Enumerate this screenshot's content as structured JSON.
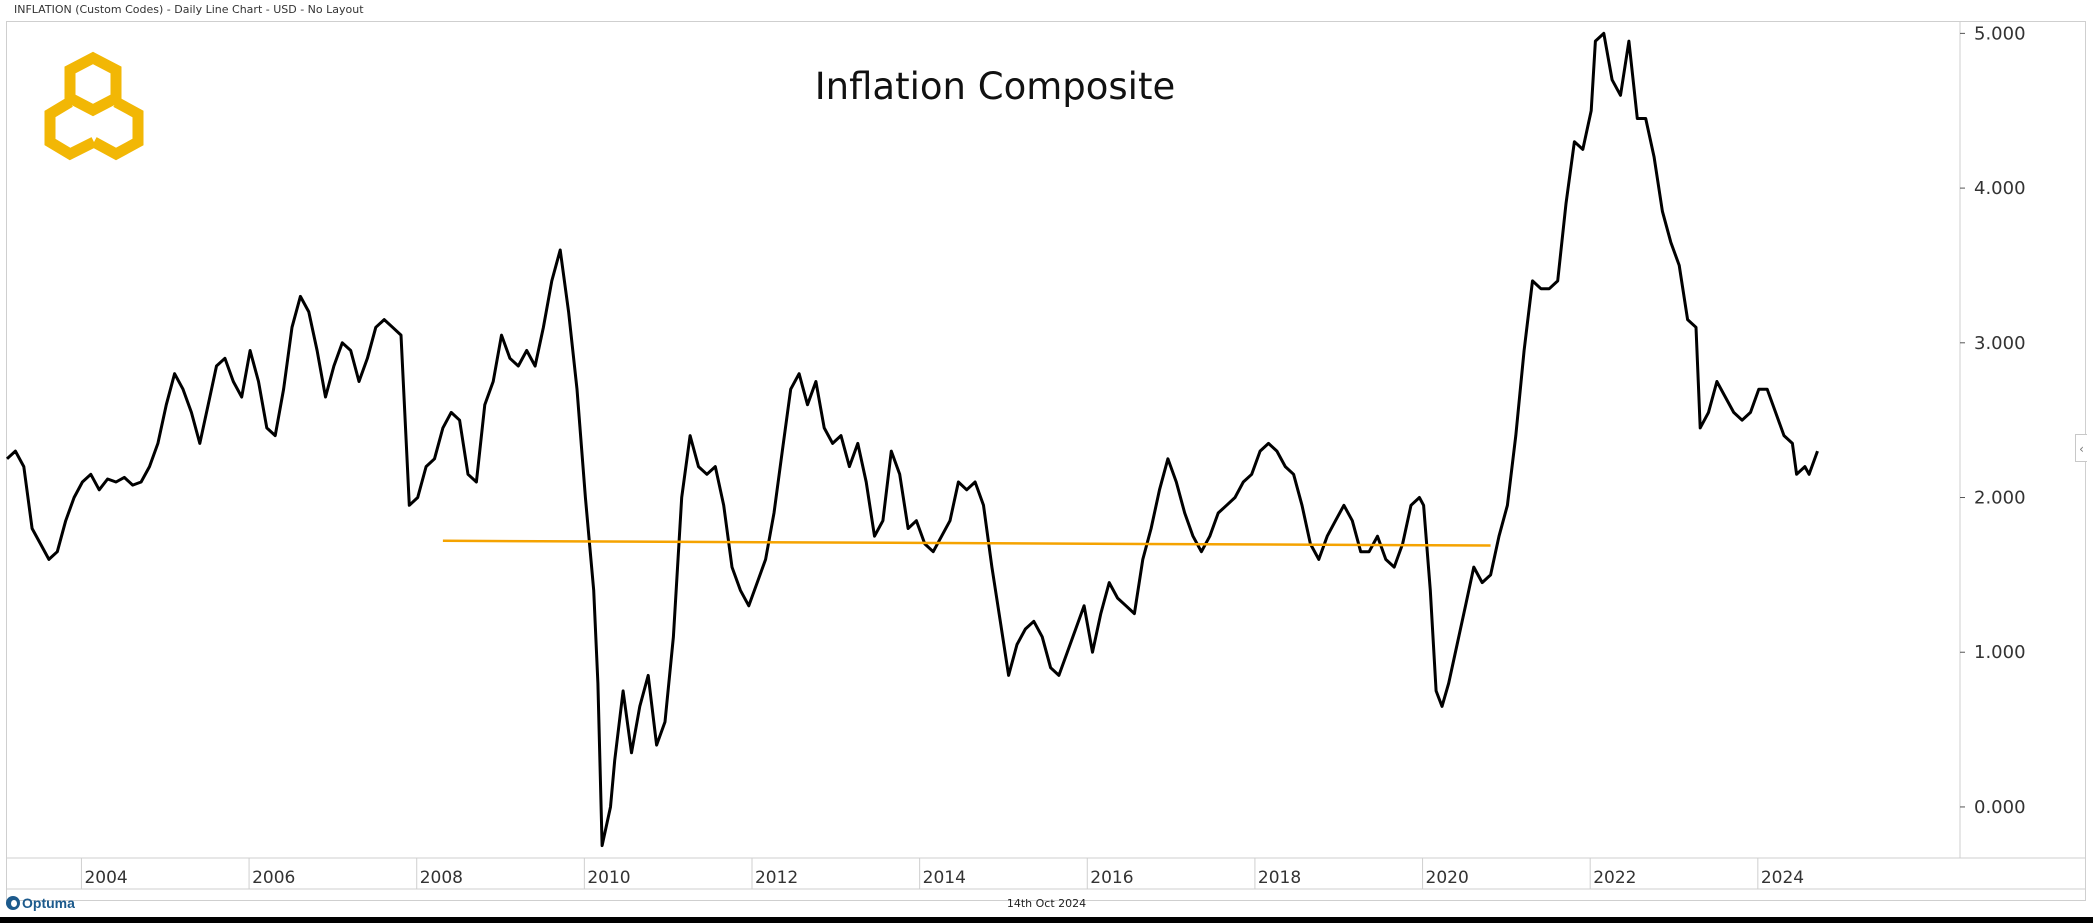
{
  "header": {
    "title": "INFLATION (Custom Codes) - Daily Line Chart - USD - No Layout"
  },
  "footer": {
    "brand": "Optuma",
    "date": "14th Oct 2024"
  },
  "controls": {
    "collapse_icon": "‹"
  },
  "colors": {
    "line": "#000000",
    "average_line": "#F5A300",
    "logo": "#F2B705",
    "axis_text": "#333333",
    "grid": "#cfcfcf"
  },
  "chart_data": {
    "type": "line",
    "title": "Inflation Composite",
    "xlabel": "",
    "ylabel": "",
    "x_tick_labels": [
      "2004",
      "2006",
      "2008",
      "2010",
      "2012",
      "2014",
      "2016",
      "2018",
      "2020",
      "2022",
      "2024"
    ],
    "y_tick_labels": [
      "0.000",
      "1.000",
      "2.000",
      "3.000",
      "4.000",
      "5.000"
    ],
    "xlim": [
      2003.1,
      2026.4
    ],
    "ylim": [
      -0.33,
      5.08
    ],
    "grid": false,
    "legend": "none",
    "series": [
      {
        "name": "Inflation Composite",
        "color": "#000000",
        "points": [
          [
            2003.1,
            2.25
          ],
          [
            2003.2,
            2.3
          ],
          [
            2003.3,
            2.2
          ],
          [
            2003.4,
            1.8
          ],
          [
            2003.5,
            1.7
          ],
          [
            2003.6,
            1.6
          ],
          [
            2003.7,
            1.65
          ],
          [
            2003.8,
            1.85
          ],
          [
            2003.9,
            2.0
          ],
          [
            2004.0,
            2.1
          ],
          [
            2004.1,
            2.15
          ],
          [
            2004.2,
            2.05
          ],
          [
            2004.3,
            2.12
          ],
          [
            2004.4,
            2.1
          ],
          [
            2004.5,
            2.13
          ],
          [
            2004.6,
            2.08
          ],
          [
            2004.7,
            2.1
          ],
          [
            2004.8,
            2.2
          ],
          [
            2004.9,
            2.35
          ],
          [
            2005.0,
            2.6
          ],
          [
            2005.1,
            2.8
          ],
          [
            2005.2,
            2.7
          ],
          [
            2005.3,
            2.55
          ],
          [
            2005.4,
            2.35
          ],
          [
            2005.5,
            2.6
          ],
          [
            2005.6,
            2.85
          ],
          [
            2005.7,
            2.9
          ],
          [
            2005.8,
            2.75
          ],
          [
            2005.9,
            2.65
          ],
          [
            2006.0,
            2.95
          ],
          [
            2006.1,
            2.75
          ],
          [
            2006.2,
            2.45
          ],
          [
            2006.3,
            2.4
          ],
          [
            2006.4,
            2.7
          ],
          [
            2006.5,
            3.1
          ],
          [
            2006.6,
            3.3
          ],
          [
            2006.7,
            3.2
          ],
          [
            2006.8,
            2.95
          ],
          [
            2006.9,
            2.65
          ],
          [
            2007.0,
            2.85
          ],
          [
            2007.1,
            3.0
          ],
          [
            2007.2,
            2.95
          ],
          [
            2007.3,
            2.75
          ],
          [
            2007.4,
            2.9
          ],
          [
            2007.5,
            3.1
          ],
          [
            2007.6,
            3.15
          ],
          [
            2007.7,
            3.1
          ],
          [
            2007.8,
            3.05
          ],
          [
            2007.9,
            1.95
          ],
          [
            2008.0,
            2.0
          ],
          [
            2008.1,
            2.2
          ],
          [
            2008.2,
            2.25
          ],
          [
            2008.3,
            2.45
          ],
          [
            2008.4,
            2.55
          ],
          [
            2008.5,
            2.5
          ],
          [
            2008.6,
            2.15
          ],
          [
            2008.7,
            2.1
          ],
          [
            2008.8,
            2.6
          ],
          [
            2008.9,
            2.75
          ],
          [
            2009.0,
            3.05
          ],
          [
            2009.1,
            2.9
          ],
          [
            2009.2,
            2.85
          ],
          [
            2009.3,
            2.95
          ],
          [
            2009.4,
            2.85
          ],
          [
            2009.5,
            3.1
          ],
          [
            2009.6,
            3.4
          ],
          [
            2009.7,
            3.6
          ],
          [
            2009.8,
            3.2
          ],
          [
            2009.9,
            2.7
          ],
          [
            2010.0,
            2.0
          ],
          [
            2010.1,
            1.4
          ],
          [
            2010.15,
            0.8
          ],
          [
            2010.2,
            -0.25
          ],
          [
            2010.3,
            0.0
          ],
          [
            2010.35,
            0.3
          ],
          [
            2010.45,
            0.75
          ],
          [
            2010.55,
            0.35
          ],
          [
            2010.65,
            0.65
          ],
          [
            2010.75,
            0.85
          ],
          [
            2010.85,
            0.4
          ],
          [
            2010.95,
            0.55
          ],
          [
            2011.05,
            1.1
          ],
          [
            2011.15,
            2.0
          ],
          [
            2011.25,
            2.4
          ],
          [
            2011.35,
            2.2
          ],
          [
            2011.45,
            2.15
          ],
          [
            2011.55,
            2.2
          ],
          [
            2011.65,
            1.95
          ],
          [
            2011.75,
            1.55
          ],
          [
            2011.85,
            1.4
          ],
          [
            2011.95,
            1.3
          ],
          [
            2012.05,
            1.45
          ],
          [
            2012.15,
            1.6
          ],
          [
            2012.25,
            1.9
          ],
          [
            2012.35,
            2.3
          ],
          [
            2012.45,
            2.7
          ],
          [
            2012.55,
            2.8
          ],
          [
            2012.65,
            2.6
          ],
          [
            2012.75,
            2.75
          ],
          [
            2012.85,
            2.45
          ],
          [
            2012.95,
            2.35
          ],
          [
            2013.05,
            2.4
          ],
          [
            2013.15,
            2.2
          ],
          [
            2013.25,
            2.35
          ],
          [
            2013.35,
            2.1
          ],
          [
            2013.45,
            1.75
          ],
          [
            2013.55,
            1.85
          ],
          [
            2013.65,
            2.3
          ],
          [
            2013.75,
            2.15
          ],
          [
            2013.85,
            1.8
          ],
          [
            2013.95,
            1.85
          ],
          [
            2014.05,
            1.7
          ],
          [
            2014.15,
            1.65
          ],
          [
            2014.25,
            1.75
          ],
          [
            2014.35,
            1.85
          ],
          [
            2014.45,
            2.1
          ],
          [
            2014.55,
            2.05
          ],
          [
            2014.65,
            2.1
          ],
          [
            2014.75,
            1.95
          ],
          [
            2014.85,
            1.55
          ],
          [
            2014.95,
            1.2
          ],
          [
            2015.05,
            0.85
          ],
          [
            2015.15,
            1.05
          ],
          [
            2015.25,
            1.15
          ],
          [
            2015.35,
            1.2
          ],
          [
            2015.45,
            1.1
          ],
          [
            2015.55,
            0.9
          ],
          [
            2015.65,
            0.85
          ],
          [
            2015.75,
            1.0
          ],
          [
            2015.85,
            1.15
          ],
          [
            2015.95,
            1.3
          ],
          [
            2016.05,
            1.0
          ],
          [
            2016.15,
            1.25
          ],
          [
            2016.25,
            1.45
          ],
          [
            2016.35,
            1.35
          ],
          [
            2016.45,
            1.3
          ],
          [
            2016.55,
            1.25
          ],
          [
            2016.65,
            1.6
          ],
          [
            2016.75,
            1.8
          ],
          [
            2016.85,
            2.05
          ],
          [
            2016.95,
            2.25
          ],
          [
            2017.05,
            2.1
          ],
          [
            2017.15,
            1.9
          ],
          [
            2017.25,
            1.75
          ],
          [
            2017.35,
            1.65
          ],
          [
            2017.45,
            1.75
          ],
          [
            2017.55,
            1.9
          ],
          [
            2017.65,
            1.95
          ],
          [
            2017.75,
            2.0
          ],
          [
            2017.85,
            2.1
          ],
          [
            2017.95,
            2.15
          ],
          [
            2018.05,
            2.3
          ],
          [
            2018.15,
            2.35
          ],
          [
            2018.25,
            2.3
          ],
          [
            2018.35,
            2.2
          ],
          [
            2018.45,
            2.15
          ],
          [
            2018.55,
            1.95
          ],
          [
            2018.65,
            1.7
          ],
          [
            2018.75,
            1.6
          ],
          [
            2018.85,
            1.75
          ],
          [
            2018.95,
            1.85
          ],
          [
            2019.05,
            1.95
          ],
          [
            2019.15,
            1.85
          ],
          [
            2019.25,
            1.65
          ],
          [
            2019.35,
            1.65
          ],
          [
            2019.45,
            1.75
          ],
          [
            2019.55,
            1.6
          ],
          [
            2019.65,
            1.55
          ],
          [
            2019.75,
            1.7
          ],
          [
            2019.85,
            1.95
          ],
          [
            2019.95,
            2.0
          ],
          [
            2020.0,
            1.95
          ],
          [
            2020.08,
            1.4
          ],
          [
            2020.15,
            0.75
          ],
          [
            2020.22,
            0.65
          ],
          [
            2020.3,
            0.8
          ],
          [
            2020.4,
            1.05
          ],
          [
            2020.5,
            1.3
          ],
          [
            2020.6,
            1.55
          ],
          [
            2020.7,
            1.45
          ],
          [
            2020.8,
            1.5
          ],
          [
            2020.9,
            1.75
          ],
          [
            2021.0,
            1.95
          ],
          [
            2021.1,
            2.4
          ],
          [
            2021.2,
            2.95
          ],
          [
            2021.3,
            3.4
          ],
          [
            2021.4,
            3.35
          ],
          [
            2021.5,
            3.35
          ],
          [
            2021.6,
            3.4
          ],
          [
            2021.7,
            3.9
          ],
          [
            2021.8,
            4.3
          ],
          [
            2021.9,
            4.25
          ],
          [
            2022.0,
            4.5
          ],
          [
            2022.05,
            4.95
          ],
          [
            2022.15,
            5.0
          ],
          [
            2022.25,
            4.7
          ],
          [
            2022.35,
            4.6
          ],
          [
            2022.45,
            4.95
          ],
          [
            2022.55,
            4.45
          ],
          [
            2022.65,
            4.45
          ],
          [
            2022.75,
            4.2
          ],
          [
            2022.85,
            3.85
          ],
          [
            2022.95,
            3.65
          ],
          [
            2023.05,
            3.5
          ],
          [
            2023.15,
            3.15
          ],
          [
            2023.25,
            3.1
          ],
          [
            2023.3,
            2.45
          ],
          [
            2023.4,
            2.55
          ],
          [
            2023.5,
            2.75
          ],
          [
            2023.6,
            2.65
          ],
          [
            2023.7,
            2.55
          ],
          [
            2023.8,
            2.5
          ],
          [
            2023.9,
            2.55
          ],
          [
            2024.0,
            2.7
          ],
          [
            2024.1,
            2.7
          ],
          [
            2024.2,
            2.55
          ],
          [
            2024.3,
            2.4
          ],
          [
            2024.4,
            2.35
          ],
          [
            2024.45,
            2.15
          ],
          [
            2024.55,
            2.2
          ],
          [
            2024.6,
            2.15
          ],
          [
            2024.7,
            2.3
          ]
        ]
      },
      {
        "name": "Average",
        "color": "#F5A300",
        "points": [
          [
            2008.3,
            1.72
          ],
          [
            2020.8,
            1.69
          ]
        ]
      }
    ]
  }
}
